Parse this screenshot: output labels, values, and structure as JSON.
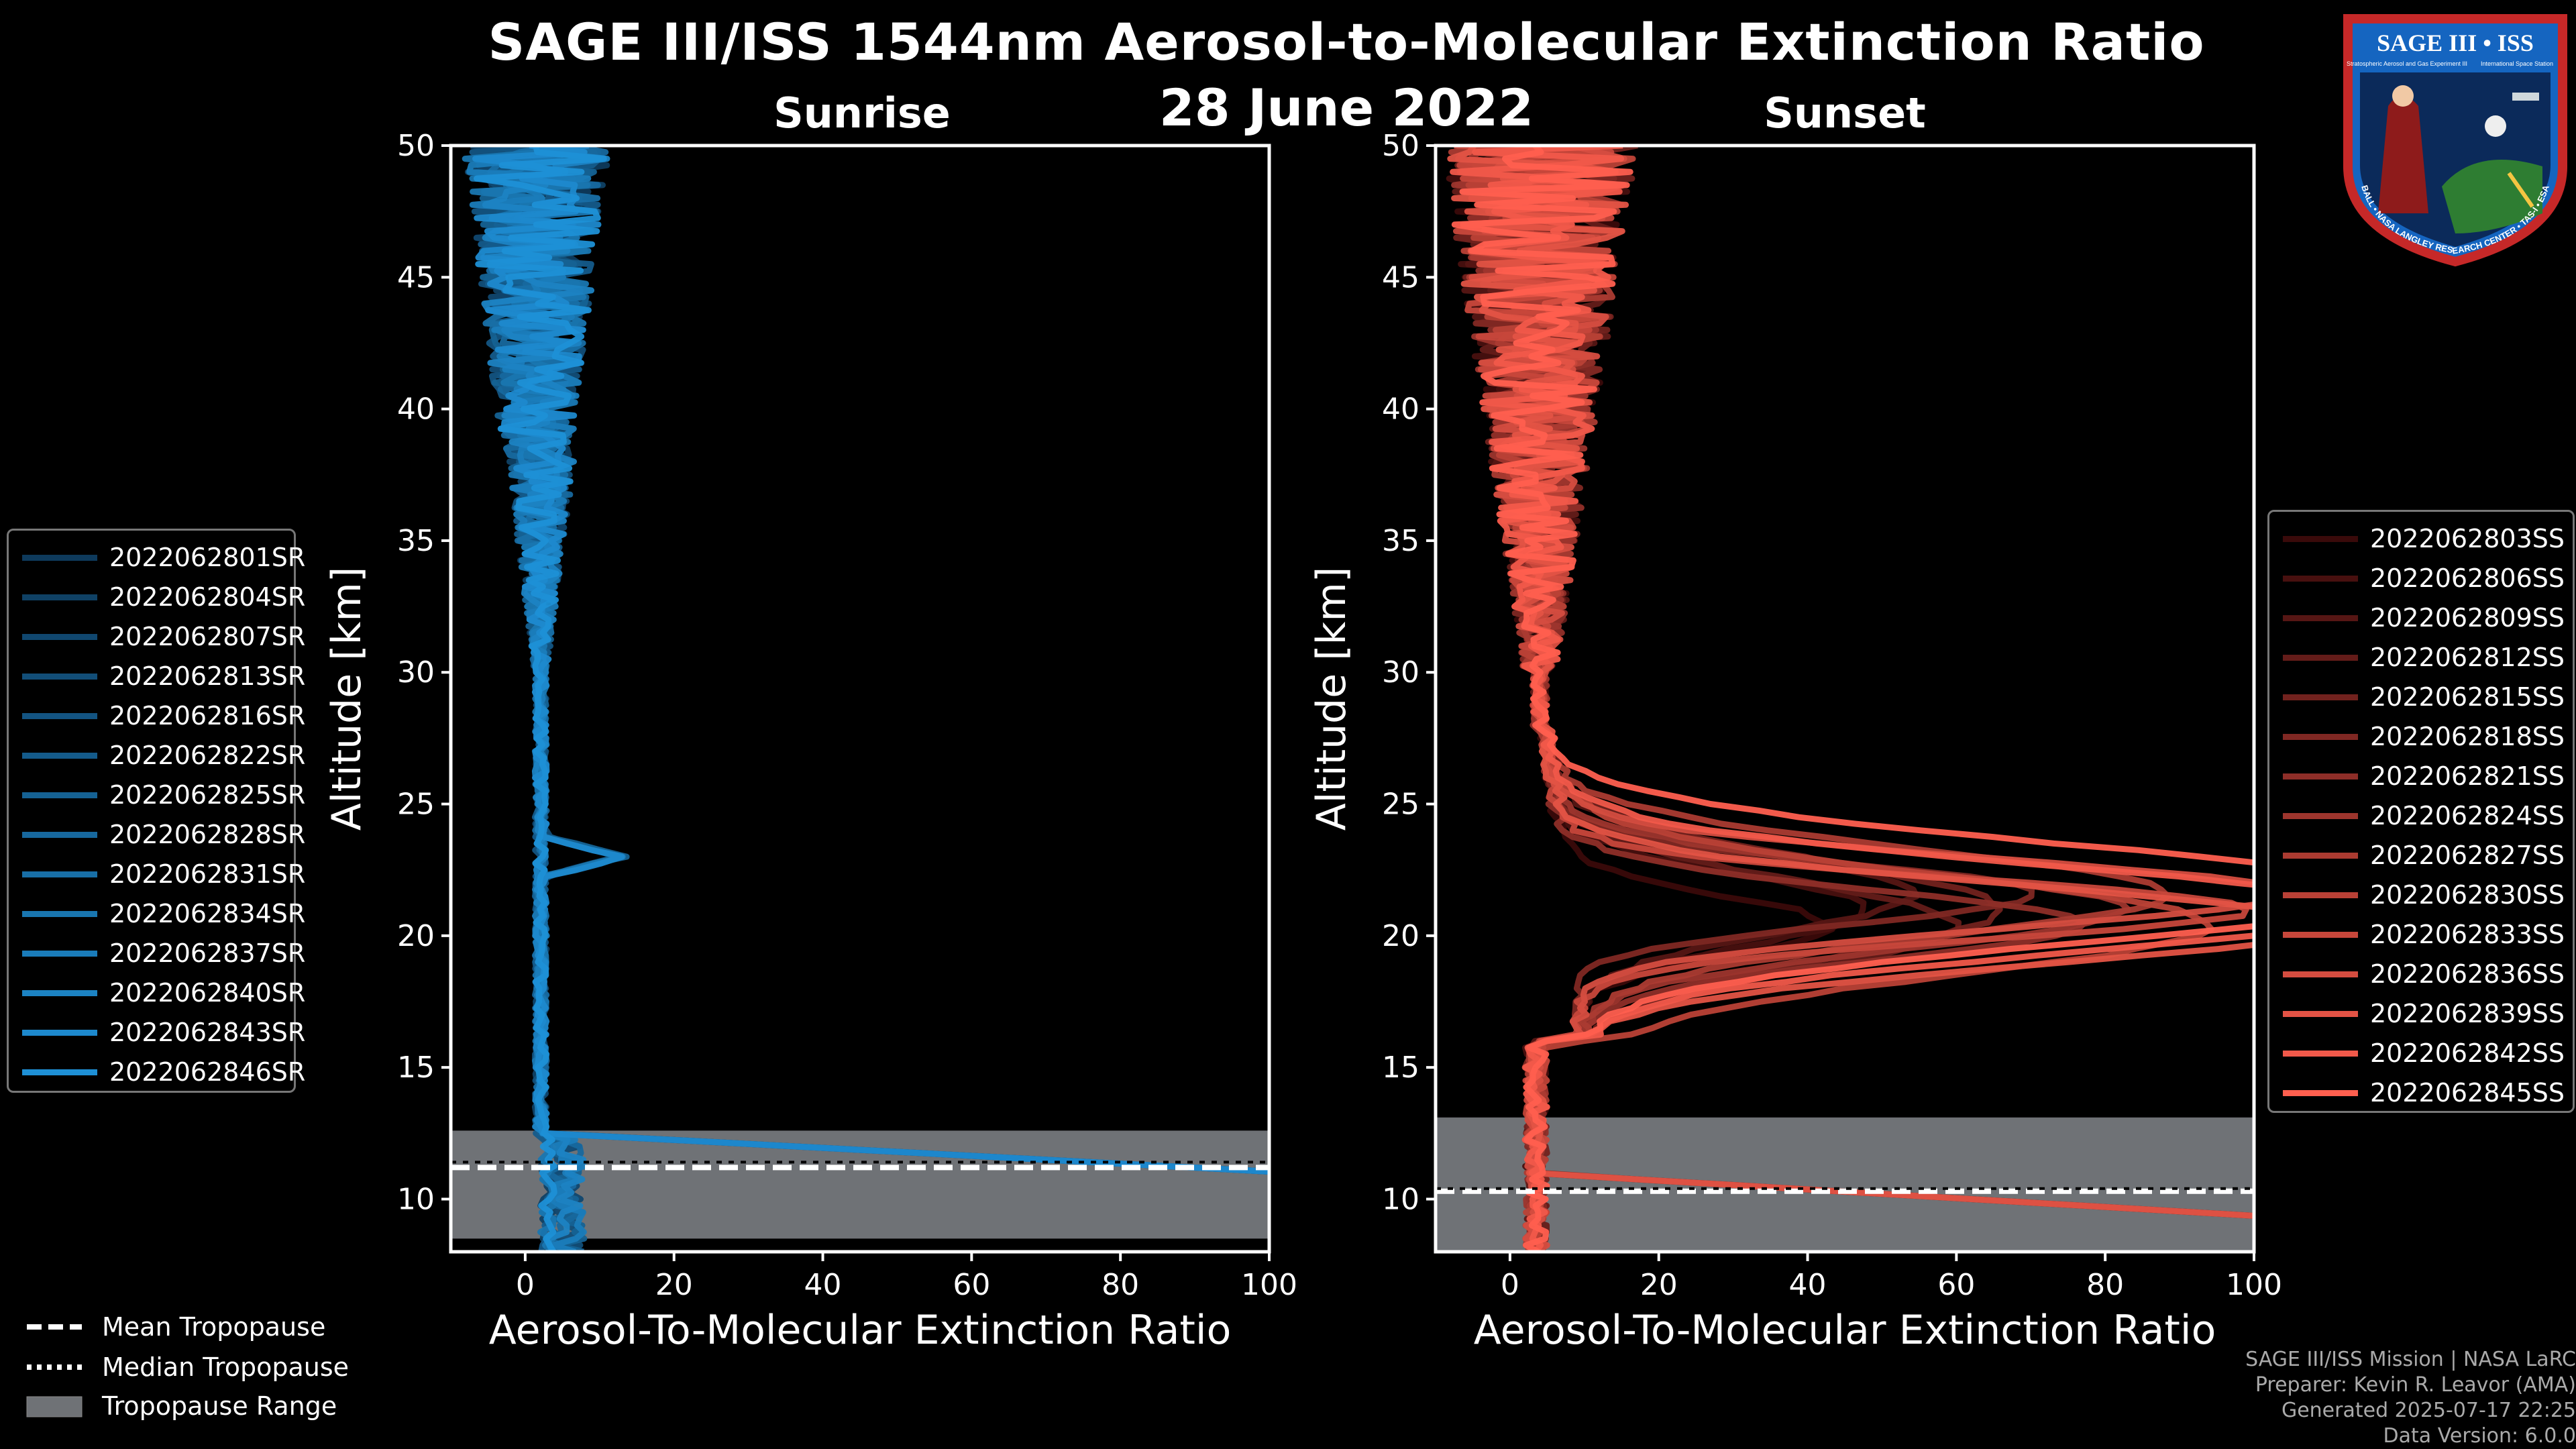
{
  "title": "SAGE III/ISS 1544nm Aerosol-to-Molecular Extinction Ratio",
  "date": "28 June 2022",
  "logo": {
    "top_text": "SAGE III • ISS",
    "left_small": "Stratospheric Aerosol and Gas Experiment III",
    "right_small": "International Space Station",
    "ring_text": "BALL • NASA LANGLEY RESEARCH CENTER • TAS-I • ESA",
    "colors": {
      "border": "#c62828",
      "inner": "#1565c0"
    }
  },
  "credits": {
    "line1": "SAGE III/ISS Mission | NASA LaRC",
    "line2": "Preparer: Kevin R. Leavor (AMA)",
    "line3": "Generated 2025-07-17 22:25",
    "line4": "Data Version: 6.0.0"
  },
  "tropopause_legend": {
    "mean": "Mean Tropopause",
    "median": "Median Tropopause",
    "range": "Tropopause Range"
  },
  "chart_data": [
    {
      "type": "line",
      "panel": "sunrise",
      "title": "Sunrise",
      "xlabel": "Aerosol-To-Molecular Extinction Ratio",
      "ylabel": "Altitude [km]",
      "xlim": [
        -10,
        100
      ],
      "ylim": [
        8,
        50
      ],
      "xticks": [
        0,
        20,
        40,
        60,
        80,
        100
      ],
      "yticks": [
        10,
        15,
        20,
        25,
        30,
        35,
        40,
        45,
        50
      ],
      "xtick_labels": [
        "0",
        "20",
        "40",
        "60",
        "80",
        "100"
      ],
      "ytick_labels": [
        "10",
        "15",
        "20",
        "25",
        "30",
        "35",
        "40",
        "45",
        "50"
      ],
      "tropopause": {
        "range": [
          8.5,
          12.6
        ],
        "mean": 11.2,
        "median": 11.3
      },
      "colors": {
        "start": "#0e3a5c",
        "end": "#1e90d6"
      },
      "spike": {
        "altitude": 23,
        "value": 11
      },
      "low_tail_max": 100,
      "series": [
        {
          "name": "2022062801SR"
        },
        {
          "name": "2022062804SR"
        },
        {
          "name": "2022062807SR"
        },
        {
          "name": "2022062813SR"
        },
        {
          "name": "2022062816SR"
        },
        {
          "name": "2022062822SR"
        },
        {
          "name": "2022062825SR"
        },
        {
          "name": "2022062828SR"
        },
        {
          "name": "2022062831SR"
        },
        {
          "name": "2022062834SR"
        },
        {
          "name": "2022062837SR"
        },
        {
          "name": "2022062840SR"
        },
        {
          "name": "2022062843SR"
        },
        {
          "name": "2022062846SR"
        }
      ]
    },
    {
      "type": "line",
      "panel": "sunset",
      "title": "Sunset",
      "xlabel": "Aerosol-To-Molecular Extinction Ratio",
      "ylabel": "Altitude [km]",
      "xlim": [
        -10,
        100
      ],
      "ylim": [
        8,
        50
      ],
      "xticks": [
        0,
        20,
        40,
        60,
        80,
        100
      ],
      "yticks": [
        10,
        15,
        20,
        25,
        30,
        35,
        40,
        45,
        50
      ],
      "xtick_labels": [
        "0",
        "20",
        "40",
        "60",
        "80",
        "100"
      ],
      "ytick_labels": [
        "10",
        "15",
        "20",
        "25",
        "30",
        "35",
        "40",
        "45",
        "50"
      ],
      "tropopause": {
        "range": [
          8,
          13.1
        ],
        "mean": 10.3,
        "median": 10.3
      },
      "colors": {
        "start": "#3a0a0a",
        "end": "#ff5f4f"
      },
      "peak": {
        "altitude": 21,
        "value": 100
      },
      "series": [
        {
          "name": "2022062803SS"
        },
        {
          "name": "2022062806SS"
        },
        {
          "name": "2022062809SS"
        },
        {
          "name": "2022062812SS"
        },
        {
          "name": "2022062815SS"
        },
        {
          "name": "2022062818SS"
        },
        {
          "name": "2022062821SS"
        },
        {
          "name": "2022062824SS"
        },
        {
          "name": "2022062827SS"
        },
        {
          "name": "2022062830SS"
        },
        {
          "name": "2022062833SS"
        },
        {
          "name": "2022062836SS"
        },
        {
          "name": "2022062839SS"
        },
        {
          "name": "2022062842SS"
        },
        {
          "name": "2022062845SS"
        }
      ]
    }
  ]
}
